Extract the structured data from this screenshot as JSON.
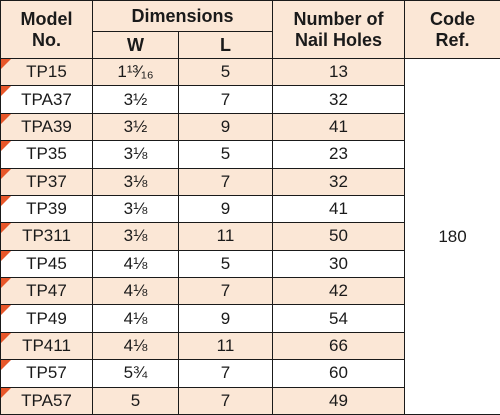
{
  "headers": {
    "model": "Model No.",
    "dimensions": "Dimensions",
    "width": "W",
    "length": "L",
    "nail_holes": "Number of Nail Holes",
    "code_ref": "Code Ref."
  },
  "code_ref_value": "180",
  "rows": [
    {
      "model": "TP15",
      "w": "1¹³⁄₁₆",
      "l": "5",
      "holes": "13"
    },
    {
      "model": "TPA37",
      "w": "3½",
      "l": "7",
      "holes": "32"
    },
    {
      "model": "TPA39",
      "w": "3½",
      "l": "9",
      "holes": "41"
    },
    {
      "model": "TP35",
      "w": "3⅛",
      "l": "5",
      "holes": "23"
    },
    {
      "model": "TP37",
      "w": "3⅛",
      "l": "7",
      "holes": "32"
    },
    {
      "model": "TP39",
      "w": "3⅛",
      "l": "9",
      "holes": "41"
    },
    {
      "model": "TP311",
      "w": "3⅛",
      "l": "11",
      "holes": "50"
    },
    {
      "model": "TP45",
      "w": "4⅛",
      "l": "5",
      "holes": "30"
    },
    {
      "model": "TP47",
      "w": "4⅛",
      "l": "7",
      "holes": "42"
    },
    {
      "model": "TP49",
      "w": "4⅛",
      "l": "9",
      "holes": "54"
    },
    {
      "model": "TP411",
      "w": "4⅛",
      "l": "11",
      "holes": "66"
    },
    {
      "model": "TP57",
      "w": "5¾",
      "l": "7",
      "holes": "60"
    },
    {
      "model": "TPA57",
      "w": "5",
      "l": "7",
      "holes": "49"
    }
  ],
  "colors": {
    "row_shade": "#fbe7d6",
    "flag_marker": "#e8572a",
    "border": "#1a1a1a"
  }
}
